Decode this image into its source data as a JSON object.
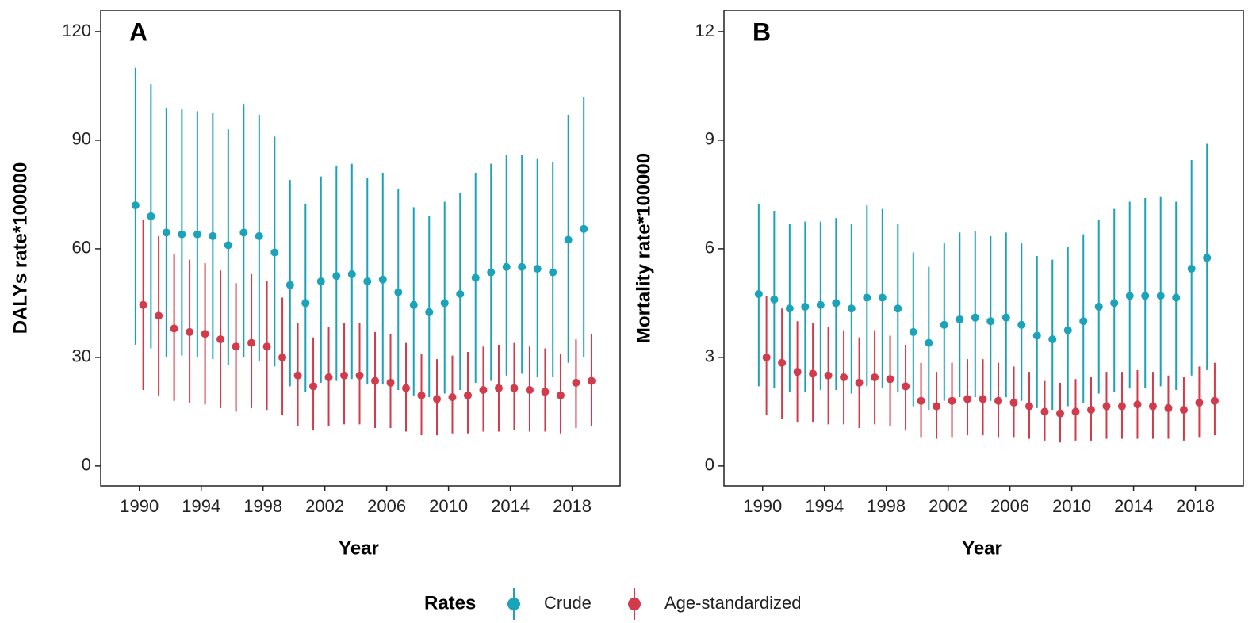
{
  "chart_data": [
    {
      "type": "errorbar",
      "label": "A",
      "xlabel": "Year",
      "ylabel": "DALYs rate*100000",
      "x": [
        1990,
        1991,
        1992,
        1993,
        1994,
        1995,
        1996,
        1997,
        1998,
        1999,
        2000,
        2001,
        2002,
        2003,
        2004,
        2005,
        2006,
        2007,
        2008,
        2009,
        2010,
        2011,
        2012,
        2013,
        2014,
        2015,
        2016,
        2017,
        2018,
        2019
      ],
      "xlim": [
        1987.5,
        2021.1
      ],
      "xticks": [
        1990,
        1994,
        1998,
        2002,
        2006,
        2010,
        2014,
        2018
      ],
      "ylim": [
        -5.5,
        125.9
      ],
      "yticks": [
        0,
        30,
        60,
        90,
        120
      ],
      "series": [
        {
          "name": "Crude",
          "color": "#1ba3b9",
          "values": [
            72,
            69,
            64.5,
            64,
            64,
            63.5,
            61,
            64.5,
            63.5,
            59,
            50,
            45,
            51,
            52.5,
            53,
            51,
            51.5,
            48,
            44.5,
            42.5,
            45,
            47.5,
            52,
            53.5,
            55,
            55,
            54.5,
            53.5,
            62.5,
            65.5
          ],
          "upper": [
            110,
            105.5,
            99,
            98.5,
            98,
            97.5,
            93,
            100,
            97,
            91,
            79,
            72.5,
            80,
            83,
            83.5,
            79.5,
            81,
            76.5,
            71.5,
            69,
            73,
            75.5,
            81,
            83.5,
            86,
            86,
            85,
            84,
            97,
            102
          ],
          "lower": [
            33.5,
            32.5,
            30,
            30.5,
            30,
            29.5,
            28,
            30,
            29,
            27.5,
            22,
            20.5,
            23,
            23.5,
            24,
            22.5,
            22.5,
            21,
            19.5,
            19,
            20,
            21,
            23,
            23.5,
            25,
            25.5,
            24.5,
            24.5,
            28.5,
            30
          ]
        },
        {
          "name": "Age-standardized",
          "color": "#d23b4b",
          "values": [
            44.5,
            41.5,
            38,
            37,
            36.5,
            35,
            33,
            34,
            33,
            30,
            25,
            22,
            24.5,
            25,
            25,
            23.5,
            23,
            21.5,
            19.5,
            18.5,
            19,
            19.5,
            21,
            21.5,
            21.5,
            21,
            20.5,
            19.5,
            23,
            23.5
          ],
          "upper": [
            68,
            63.5,
            58.5,
            57,
            56,
            54,
            50.5,
            53,
            51,
            46.5,
            39.5,
            35.5,
            38.5,
            39.5,
            39.5,
            37,
            36.5,
            34,
            31,
            29.5,
            30.5,
            31.5,
            33,
            33.5,
            34,
            33,
            32.5,
            31,
            35,
            36.5
          ],
          "lower": [
            21,
            19.5,
            18,
            17.5,
            17,
            16,
            15,
            16,
            15.5,
            14,
            11,
            10,
            11,
            11.5,
            11.5,
            10.5,
            10.5,
            9.5,
            8.5,
            8.5,
            9,
            9,
            9.5,
            9.5,
            10,
            9.5,
            9.5,
            9,
            10.5,
            11
          ]
        }
      ]
    },
    {
      "type": "errorbar",
      "label": "B",
      "xlabel": "Year",
      "ylabel": "Mortality rate*100000",
      "x": [
        1990,
        1991,
        1992,
        1993,
        1994,
        1995,
        1996,
        1997,
        1998,
        1999,
        2000,
        2001,
        2002,
        2003,
        2004,
        2005,
        2006,
        2007,
        2008,
        2009,
        2010,
        2011,
        2012,
        2013,
        2014,
        2015,
        2016,
        2017,
        2018,
        2019
      ],
      "xlim": [
        1987.5,
        2021.1
      ],
      "xticks": [
        1990,
        1994,
        1998,
        2002,
        2006,
        2010,
        2014,
        2018
      ],
      "ylim": [
        -0.55,
        12.59
      ],
      "yticks": [
        0,
        3,
        6,
        9,
        12
      ],
      "series": [
        {
          "name": "Crude",
          "color": "#1ba3b9",
          "values": [
            4.75,
            4.6,
            4.35,
            4.4,
            4.45,
            4.5,
            4.35,
            4.65,
            4.65,
            4.35,
            3.7,
            3.4,
            3.9,
            4.05,
            4.1,
            4,
            4.1,
            3.9,
            3.6,
            3.5,
            3.75,
            4,
            4.4,
            4.5,
            4.7,
            4.7,
            4.7,
            4.65,
            5.45,
            5.75
          ],
          "upper": [
            7.25,
            7.05,
            6.7,
            6.75,
            6.75,
            6.85,
            6.7,
            7.2,
            7.1,
            6.7,
            5.9,
            5.5,
            6.15,
            6.45,
            6.5,
            6.35,
            6.45,
            6.15,
            5.8,
            5.7,
            6.05,
            6.4,
            6.8,
            7.1,
            7.3,
            7.4,
            7.45,
            7.3,
            8.45,
            8.9
          ],
          "lower": [
            2.2,
            2.15,
            2.05,
            2.05,
            2.1,
            2.1,
            2,
            2.2,
            2.15,
            2.05,
            1.65,
            1.55,
            1.8,
            1.9,
            1.9,
            1.8,
            1.9,
            1.8,
            1.6,
            1.55,
            1.65,
            1.75,
            2,
            2.05,
            2.15,
            2.15,
            2.2,
            2.1,
            2.5,
            2.65
          ]
        },
        {
          "name": "Age-standardized",
          "color": "#d23b4b",
          "values": [
            3,
            2.85,
            2.6,
            2.55,
            2.5,
            2.45,
            2.3,
            2.45,
            2.4,
            2.2,
            1.8,
            1.65,
            1.8,
            1.85,
            1.85,
            1.8,
            1.75,
            1.65,
            1.5,
            1.45,
            1.5,
            1.55,
            1.65,
            1.65,
            1.7,
            1.65,
            1.6,
            1.55,
            1.75,
            1.8
          ],
          "upper": [
            4.7,
            4.35,
            4,
            3.95,
            3.85,
            3.75,
            3.55,
            3.75,
            3.6,
            3.35,
            2.85,
            2.6,
            2.85,
            2.95,
            2.95,
            2.85,
            2.75,
            2.6,
            2.35,
            2.3,
            2.4,
            2.45,
            2.6,
            2.6,
            2.65,
            2.6,
            2.5,
            2.45,
            2.75,
            2.85
          ],
          "lower": [
            1.4,
            1.3,
            1.2,
            1.2,
            1.15,
            1.15,
            1.05,
            1.15,
            1.1,
            1,
            0.8,
            0.75,
            0.8,
            0.85,
            0.85,
            0.8,
            0.8,
            0.75,
            0.7,
            0.65,
            0.7,
            0.7,
            0.75,
            0.75,
            0.75,
            0.75,
            0.75,
            0.7,
            0.8,
            0.85
          ]
        }
      ]
    }
  ],
  "legend": {
    "title": "Rates"
  }
}
